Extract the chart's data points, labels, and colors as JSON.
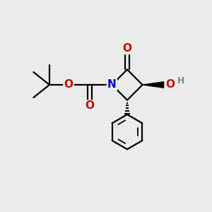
{
  "bg_color": "#ebebeb",
  "atom_colors": {
    "C": "#000000",
    "N": "#0000cc",
    "O": "#cc0000",
    "H": "#5a9090"
  },
  "bond_color": "#000000",
  "bond_width": 1.6
}
